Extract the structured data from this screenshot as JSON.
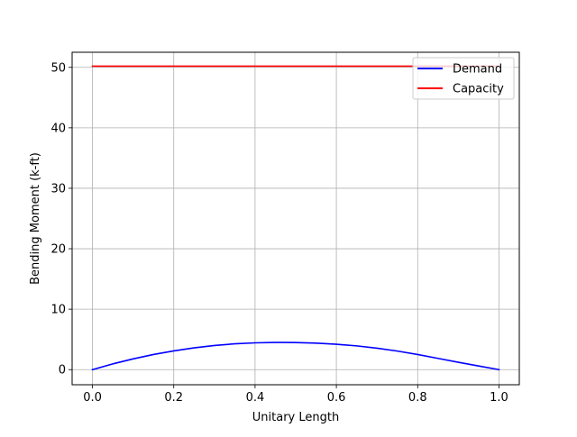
{
  "chart_data": {
    "type": "line",
    "title": "",
    "xlabel": "Unitary Length",
    "ylabel": "Bending Moment (k-ft)",
    "xlim": [
      -0.05,
      1.05
    ],
    "ylim": [
      -2.5,
      52.5
    ],
    "xticks": [
      0.0,
      0.2,
      0.4,
      0.6,
      0.8,
      1.0
    ],
    "xtick_labels": [
      "0.0",
      "0.2",
      "0.4",
      "0.6",
      "0.8",
      "1.0"
    ],
    "yticks": [
      0,
      10,
      20,
      30,
      40,
      50
    ],
    "ytick_labels": [
      "0",
      "10",
      "20",
      "30",
      "40",
      "50"
    ],
    "grid": true,
    "legend_position": "top-right",
    "series": [
      {
        "name": "Demand",
        "color": "#0000ff",
        "x": [
          0.0,
          0.05,
          0.1,
          0.15,
          0.2,
          0.25,
          0.3,
          0.35,
          0.4,
          0.45,
          0.47,
          0.5,
          0.55,
          0.6,
          0.65,
          0.7,
          0.75,
          0.8,
          0.85,
          0.9,
          0.95,
          1.0
        ],
        "y": [
          0.0,
          0.95,
          1.78,
          2.5,
          3.1,
          3.6,
          3.99,
          4.27,
          4.43,
          4.49,
          4.5,
          4.48,
          4.38,
          4.2,
          3.93,
          3.55,
          3.07,
          2.5,
          1.86,
          1.22,
          0.6,
          0.0
        ]
      },
      {
        "name": "Capacity",
        "color": "#ff0000",
        "x": [
          0.0,
          1.0
        ],
        "y": [
          50.2,
          50.2
        ]
      }
    ]
  }
}
